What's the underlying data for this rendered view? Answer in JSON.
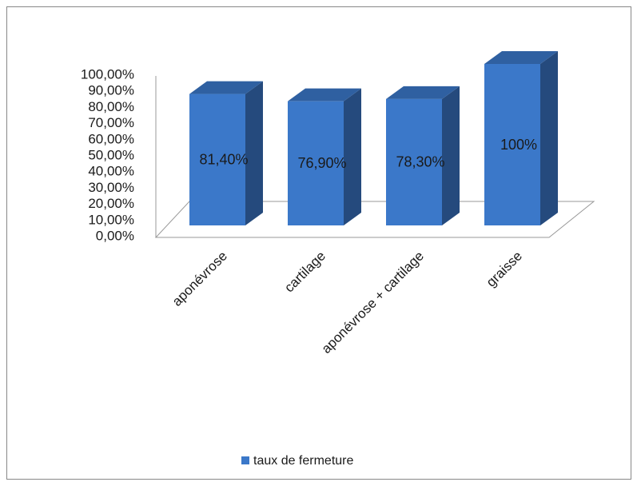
{
  "chart_data": {
    "type": "bar3d",
    "categories": [
      "aponévrose",
      "cartilage",
      "aponévrose + cartilage",
      "graisse"
    ],
    "series": [
      {
        "name": "taux de fermeture",
        "color": "#3b78c9",
        "values": [
          81.4,
          76.9,
          78.3,
          100
        ],
        "value_labels": [
          "81,40%",
          "76,90%",
          "78,30%",
          "100%"
        ]
      }
    ],
    "ylim": [
      0,
      100
    ],
    "yticks": [
      {
        "value": 0,
        "label": "0,00%"
      },
      {
        "value": 10,
        "label": "10,00%"
      },
      {
        "value": 20,
        "label": "20,00%"
      },
      {
        "value": 30,
        "label": "30,00%"
      },
      {
        "value": 40,
        "label": "40,00%"
      },
      {
        "value": 50,
        "label": "50,00%"
      },
      {
        "value": 60,
        "label": "60,00%"
      },
      {
        "value": 70,
        "label": "70,00%"
      },
      {
        "value": 80,
        "label": "80,00%"
      },
      {
        "value": 90,
        "label": "90,00%"
      },
      {
        "value": 100,
        "label": "100,00%"
      }
    ],
    "legend": "bottom"
  }
}
